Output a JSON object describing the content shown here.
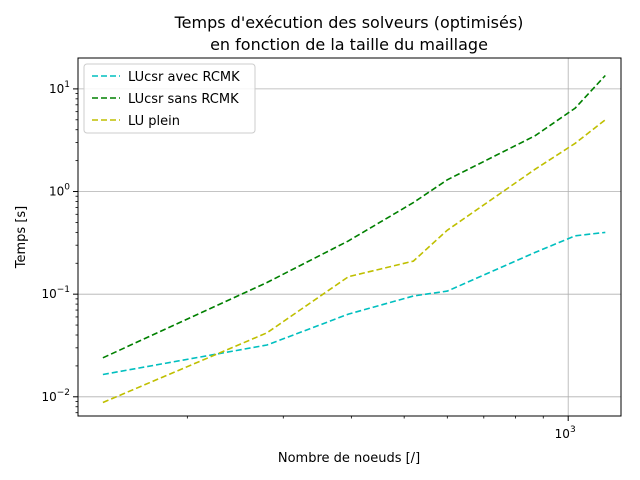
{
  "chart_data": {
    "type": "line",
    "title_lines": [
      "Temps d'exécution des solveurs (optimisés)",
      "en fonction de la taille du maillage"
    ],
    "xlabel": "Nombre de noeuds [/]",
    "ylabel": "Temps [s]",
    "x_scale": "log",
    "y_scale": "log",
    "xlim": [
      126,
      1250
    ],
    "ylim": [
      0.0065,
      20
    ],
    "grid": true,
    "legend_position": "top-left",
    "x_ticks": [
      {
        "value": 1000,
        "base": "10",
        "exp": "3"
      }
    ],
    "y_ticks": [
      {
        "value": 0.01,
        "base": "10",
        "exp": "−2"
      },
      {
        "value": 0.1,
        "base": "10",
        "exp": "−1"
      },
      {
        "value": 1,
        "base": "10",
        "exp": "0"
      },
      {
        "value": 10,
        "base": "10",
        "exp": "1"
      }
    ],
    "x_minor_ticks": [
      200,
      300,
      400,
      500,
      600,
      700,
      800,
      900
    ],
    "series": [
      {
        "name": "LUcsr avec RCMK",
        "color": "#00bfbf",
        "x": [
          140,
          280,
          395,
          520,
          600,
          870,
          1030,
          1170
        ],
        "y": [
          0.0165,
          0.032,
          0.064,
          0.096,
          0.107,
          0.255,
          0.37,
          0.4
        ]
      },
      {
        "name": "LUcsr sans RCMK",
        "color": "#008000",
        "x": [
          140,
          280,
          395,
          520,
          600,
          870,
          1030,
          1170
        ],
        "y": [
          0.024,
          0.13,
          0.33,
          0.78,
          1.3,
          3.5,
          6.5,
          13.5
        ]
      },
      {
        "name": "LU plein",
        "color": "#bfbf00",
        "x": [
          140,
          280,
          395,
          520,
          600,
          870,
          1030,
          1170
        ],
        "y": [
          0.0088,
          0.042,
          0.148,
          0.21,
          0.42,
          1.65,
          2.95,
          5.0
        ]
      }
    ]
  }
}
